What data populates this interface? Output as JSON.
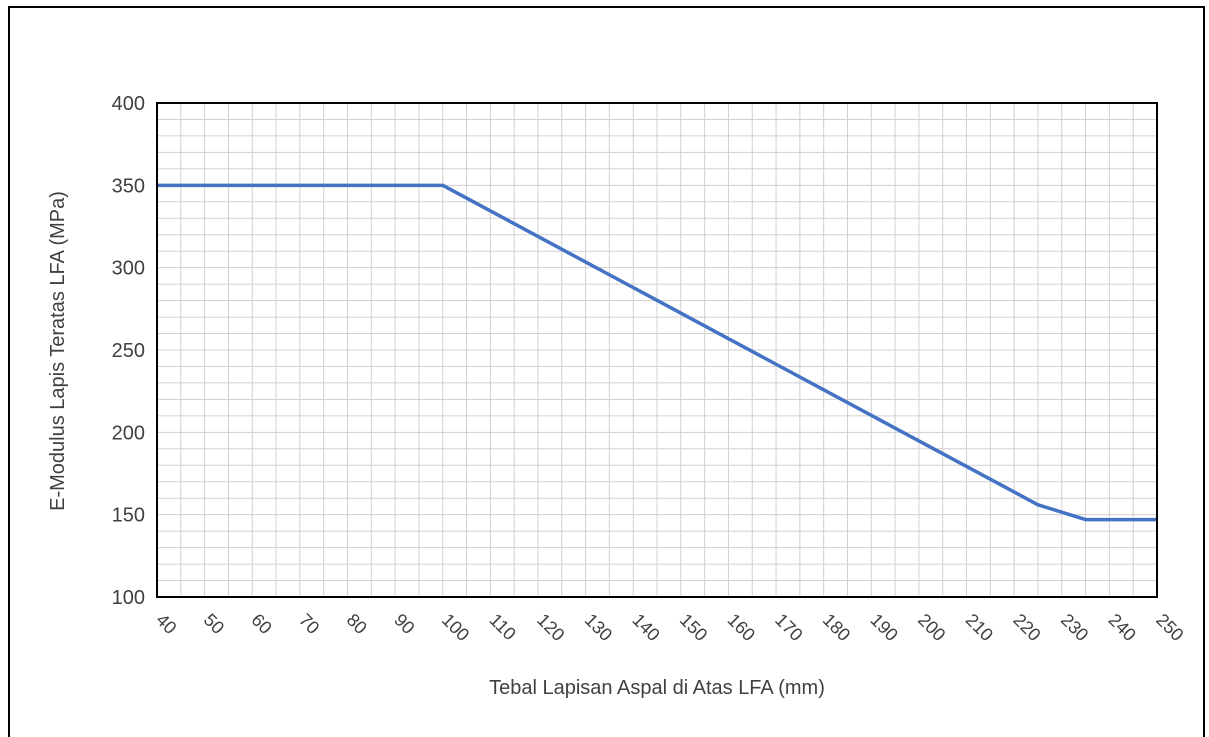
{
  "chart_data": {
    "type": "line",
    "title": "",
    "xlabel": "Tebal Lapisan Aspal di Atas LFA (mm)",
    "ylabel": "E-Modulus Lapis Teratas LFA (MPa)",
    "xlim": [
      40,
      250
    ],
    "ylim": [
      100,
      400
    ],
    "x_ticks": [
      40,
      50,
      60,
      70,
      80,
      90,
      100,
      110,
      120,
      130,
      140,
      150,
      160,
      170,
      180,
      190,
      200,
      210,
      220,
      230,
      240,
      250
    ],
    "y_ticks": [
      100,
      150,
      200,
      250,
      300,
      350,
      400
    ],
    "x_minor_step": 5,
    "y_minor_step": 10,
    "grid": true,
    "legend": "none",
    "series": [
      {
        "color": "#4472C4",
        "x": [
          40,
          100,
          225,
          235,
          250
        ],
        "y": [
          350,
          350,
          156,
          147,
          147
        ]
      }
    ]
  }
}
